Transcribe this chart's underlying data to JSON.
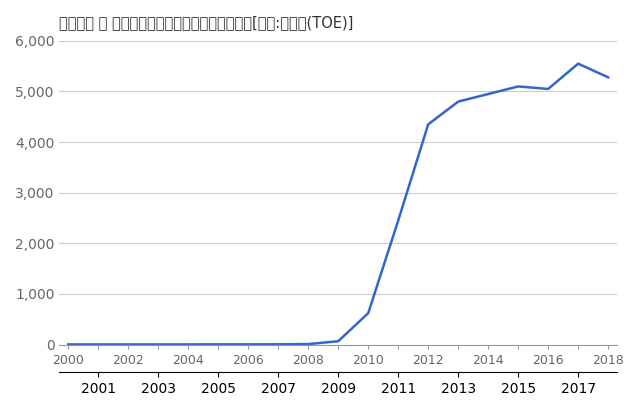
{
  "title": "イタリア － 太陽光発電量（石油換算トン）　　[単位:千トン(TOE)]",
  "years": [
    2000,
    2001,
    2002,
    2003,
    2004,
    2005,
    2006,
    2007,
    2008,
    2009,
    2010,
    2011,
    2012,
    2013,
    2014,
    2015,
    2016,
    2017,
    2018
  ],
  "values": [
    2,
    2,
    2,
    2,
    2,
    3,
    3,
    4,
    8,
    65,
    620,
    2450,
    4350,
    4800,
    4950,
    5100,
    5050,
    5550,
    5280
  ],
  "line_color": "#3366CC",
  "bg_color": "#ffffff",
  "grid_color": "#cccccc",
  "ylim": [
    0,
    6000
  ],
  "yticks": [
    0,
    1000,
    2000,
    3000,
    4000,
    5000,
    6000
  ],
  "xlabel_fontsize": 9,
  "ylabel_fontsize": 9,
  "title_fontsize": 10.5,
  "tick_label_color": "#666666"
}
